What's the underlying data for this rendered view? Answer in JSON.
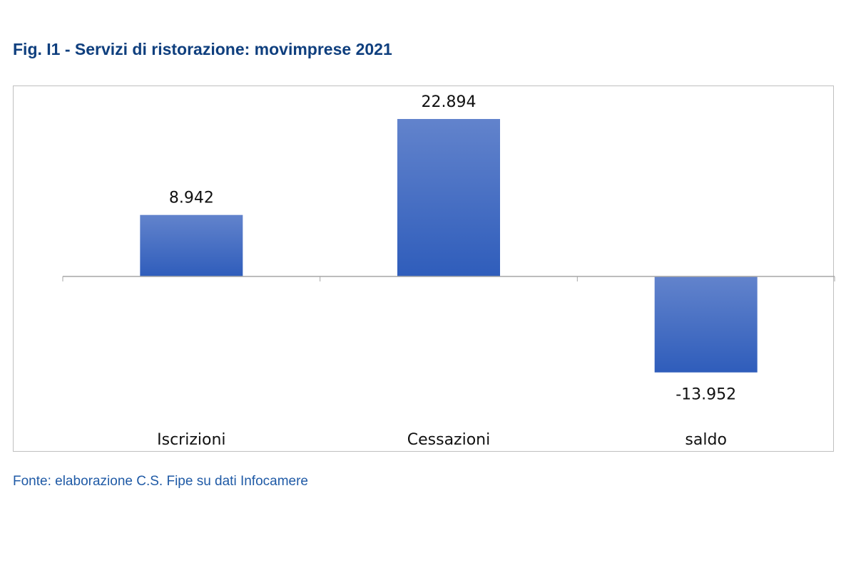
{
  "chart_data": {
    "type": "bar",
    "title": "Fig. I1 - Servizi di ristorazione: movimprese 2021",
    "categories": [
      "Iscrizioni",
      "Cessazioni",
      "saldo"
    ],
    "values": [
      8942,
      22894,
      -13952
    ],
    "value_labels": [
      "8.942",
      "22.894",
      "-13.952"
    ],
    "xlabel": "",
    "ylabel": "",
    "ylim": [
      -25700,
      27700
    ],
    "grid": false,
    "bar_color_top": "#6283cc",
    "bar_color_bottom": "#2f5dbb"
  },
  "source": "Fonte: elaborazione C.S. Fipe su dati Infocamere"
}
